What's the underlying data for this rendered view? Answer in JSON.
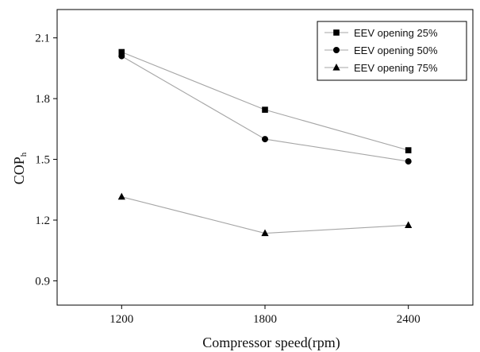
{
  "chart_data": {
    "type": "line",
    "title": "",
    "xlabel": "Compressor speed(rpm)",
    "ylabel_main": "COP",
    "ylabel_sub": "h",
    "x": [
      1200,
      1800,
      2400
    ],
    "xlim": [
      930,
      2670
    ],
    "ylim": [
      0.78,
      2.24
    ],
    "xticks": [
      1200,
      1800,
      2400
    ],
    "yticks": [
      0.9,
      1.2,
      1.5,
      1.8,
      2.1
    ],
    "ytick_labels": [
      "0.9",
      "1.2",
      "1.5",
      "1.8",
      "2.1"
    ],
    "grid": false,
    "legend_position": "top-right",
    "line_color": "#a6a6a6",
    "marker_color": "#000000",
    "series": [
      {
        "name": "EEV opening 25%",
        "marker": "square",
        "values": [
          2.03,
          1.745,
          1.545
        ]
      },
      {
        "name": "EEV opening 50%",
        "marker": "circle",
        "values": [
          2.01,
          1.6,
          1.49
        ]
      },
      {
        "name": "EEV opening 75%",
        "marker": "triangle",
        "values": [
          1.315,
          1.135,
          1.175
        ]
      }
    ]
  }
}
